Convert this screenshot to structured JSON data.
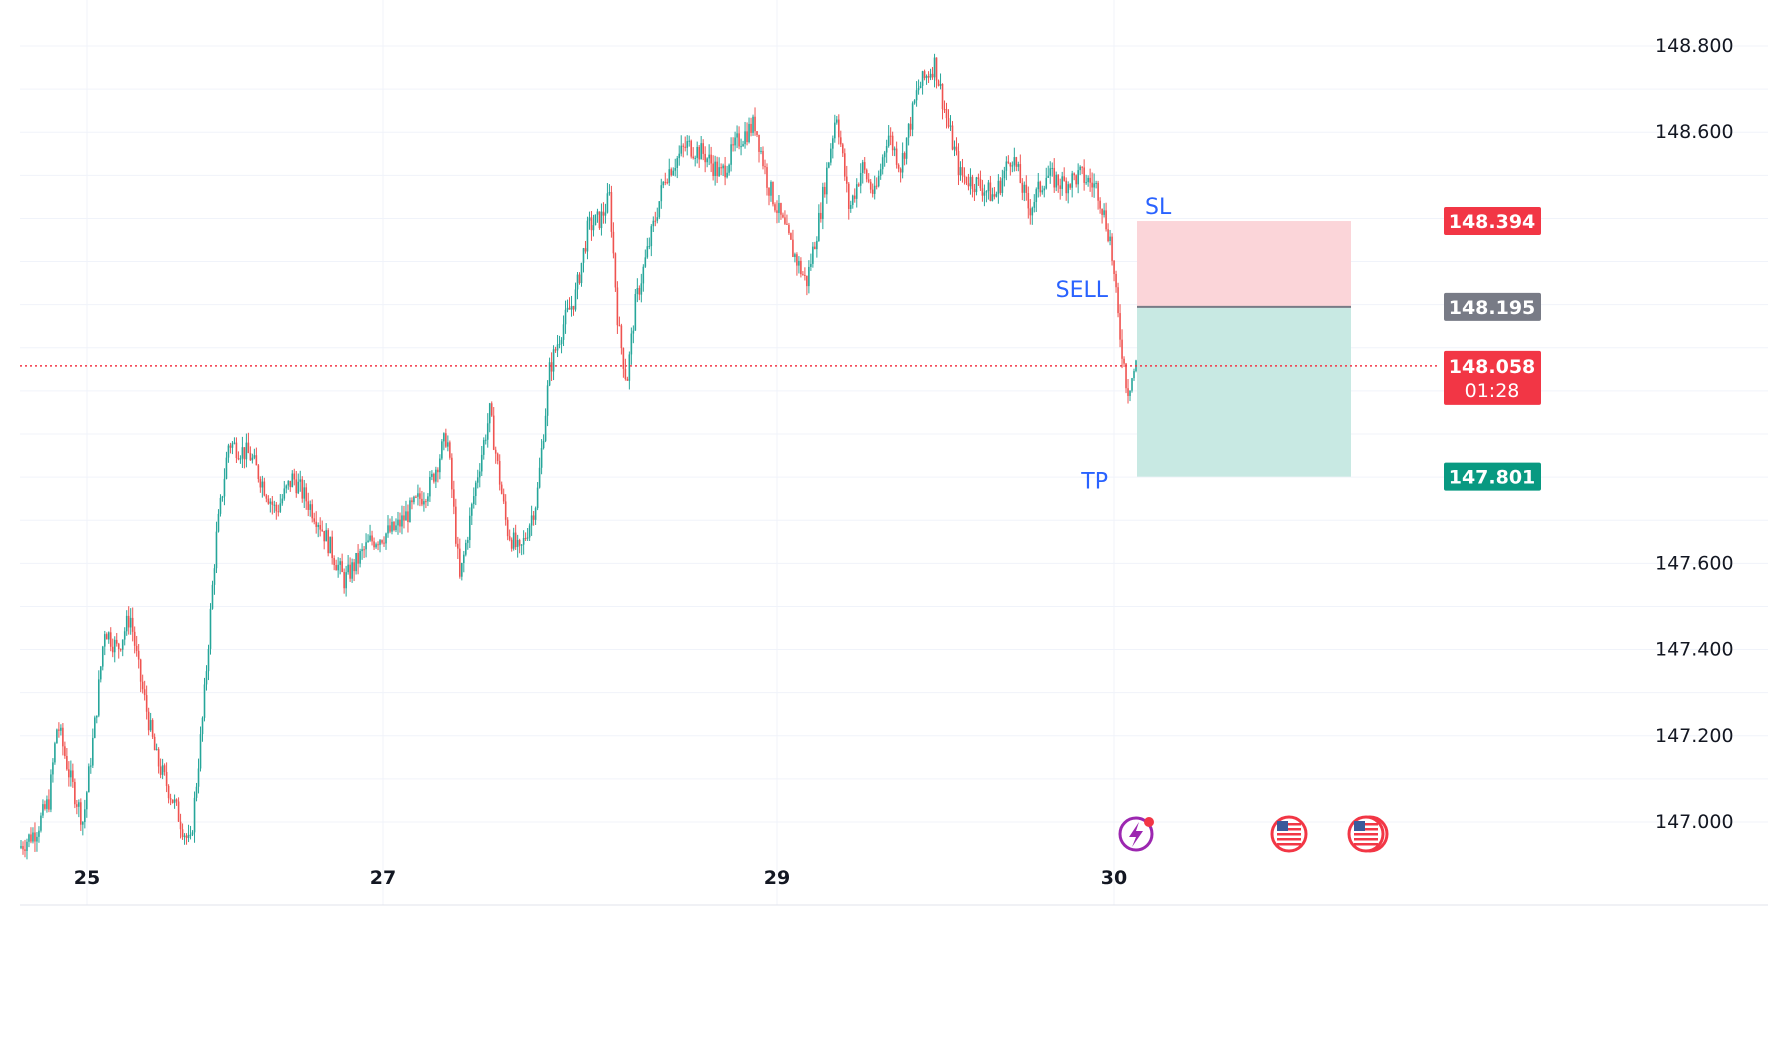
{
  "chart_data": {
    "type": "candlestick",
    "x_ticks": [
      "25",
      "27",
      "29",
      "30"
    ],
    "y_ticks": [
      "148.800",
      "148.600",
      "147.600",
      "147.400",
      "147.200",
      "147.000"
    ],
    "ylim": [
      146.92,
      148.9
    ],
    "grid": true,
    "colors": {
      "up": "#26a69a",
      "down": "#ef5350",
      "profit": "#c8e9e3",
      "loss": "#fbd5d9",
      "last": "#f23645",
      "entry": "#787b86",
      "tp": "#089981",
      "label": "#2962ff"
    },
    "price_path": [
      [
        0,
        146.94
      ],
      [
        0.02,
        146.98
      ],
      [
        0.035,
        147.05
      ],
      [
        0.045,
        147.23
      ],
      [
        0.06,
        147.1
      ],
      [
        0.075,
        147.0
      ],
      [
        0.09,
        147.25
      ],
      [
        0.1,
        147.45
      ],
      [
        0.115,
        147.4
      ],
      [
        0.13,
        147.48
      ],
      [
        0.14,
        147.35
      ],
      [
        0.16,
        147.15
      ],
      [
        0.18,
        147.05
      ],
      [
        0.2,
        146.94
      ],
      [
        0.215,
        147.25
      ],
      [
        0.23,
        147.65
      ],
      [
        0.245,
        147.88
      ],
      [
        0.27,
        147.85
      ],
      [
        0.3,
        147.72
      ],
      [
        0.32,
        147.8
      ],
      [
        0.35,
        147.7
      ],
      [
        0.38,
        147.56
      ],
      [
        0.41,
        147.65
      ],
      [
        0.44,
        147.68
      ],
      [
        0.48,
        147.78
      ],
      [
        0.5,
        147.9
      ],
      [
        0.515,
        147.56
      ],
      [
        0.535,
        147.8
      ],
      [
        0.55,
        147.95
      ],
      [
        0.57,
        147.68
      ],
      [
        0.585,
        147.62
      ],
      [
        0.605,
        147.75
      ],
      [
        0.62,
        148.05
      ],
      [
        0.635,
        148.15
      ],
      [
        0.65,
        148.22
      ],
      [
        0.665,
        148.38
      ],
      [
        0.68,
        148.4
      ],
      [
        0.69,
        148.45
      ],
      [
        0.7,
        148.15
      ],
      [
        0.71,
        148.02
      ],
      [
        0.72,
        148.2
      ],
      [
        0.735,
        148.33
      ],
      [
        0.755,
        148.5
      ],
      [
        0.78,
        148.57
      ],
      [
        0.8,
        148.55
      ],
      [
        0.82,
        148.5
      ],
      [
        0.84,
        148.58
      ],
      [
        0.86,
        148.62
      ],
      [
        0.875,
        148.48
      ],
      [
        0.89,
        148.4
      ],
      [
        0.905,
        148.32
      ],
      [
        0.92,
        148.25
      ],
      [
        0.935,
        148.4
      ],
      [
        0.955,
        148.65
      ],
      [
        0.97,
        148.42
      ],
      [
        0.985,
        148.52
      ],
      [
        1.0,
        148.45
      ],
      [
        1.015,
        148.6
      ],
      [
        1.03,
        148.52
      ],
      [
        1.05,
        148.7
      ],
      [
        1.07,
        148.76
      ],
      [
        1.085,
        148.62
      ],
      [
        1.1,
        148.5
      ],
      [
        1.12,
        148.48
      ],
      [
        1.14,
        148.45
      ],
      [
        1.16,
        148.55
      ],
      [
        1.18,
        148.42
      ],
      [
        1.2,
        148.5
      ],
      [
        1.22,
        148.48
      ],
      [
        1.24,
        148.5
      ],
      [
        1.26,
        148.47
      ],
      [
        1.275,
        148.35
      ],
      [
        1.285,
        148.15
      ],
      [
        1.295,
        148.0
      ],
      [
        1.305,
        148.06
      ]
    ],
    "x_span_days": [
      24.8,
      30.0
    ],
    "position": {
      "side_label": "SELL",
      "sl_label": "SL",
      "tp_label": "TP",
      "stop_loss": 148.394,
      "entry": 148.195,
      "take_profit": 147.801
    },
    "price_tags": {
      "sl": "148.394",
      "entry": "148.195",
      "last": "148.058",
      "countdown": "01:28",
      "tp": "147.801"
    },
    "last_price": 148.058,
    "event_icons": [
      "lightning-event-icon",
      "us-flag-event-icon",
      "us-flag-event-icon"
    ]
  }
}
